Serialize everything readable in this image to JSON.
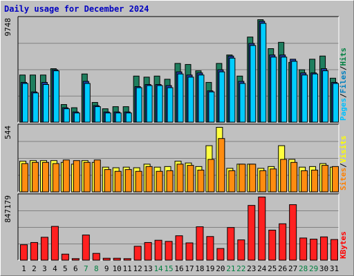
{
  "chart_data": [
    {
      "type": "bar",
      "title": "Daily usage for December 2024",
      "ymax_label": "9748",
      "ylim": [
        0,
        9748
      ],
      "categories": [
        "1",
        "2",
        "3",
        "4",
        "5",
        "6",
        "7",
        "8",
        "9",
        "10",
        "11",
        "12",
        "13",
        "14",
        "15",
        "16",
        "17",
        "18",
        "19",
        "20",
        "21",
        "22",
        "23",
        "24",
        "25",
        "26",
        "27",
        "28",
        "29",
        "30",
        "31"
      ],
      "weekend_days": [
        "7",
        "8",
        "14",
        "15",
        "21",
        "22",
        "28",
        "29"
      ],
      "legend": [
        {
          "label": "Hits",
          "color": "#008040"
        },
        {
          "label": "Files",
          "color": "#0080c0"
        },
        {
          "label": "Pages",
          "color": "#00c0ff"
        }
      ],
      "legend_separator": "/",
      "series": [
        {
          "name": "Hits",
          "color": "#1f7e5e",
          "values": [
            4500,
            4500,
            4500,
            5100,
            1700,
            1400,
            4600,
            1900,
            1300,
            1500,
            1500,
            4400,
            4300,
            4400,
            4100,
            5600,
            5500,
            4900,
            3800,
            5600,
            6400,
            4400,
            8100,
            9748,
            7000,
            7600,
            5700,
            5000,
            6000,
            6300,
            4200
          ]
        },
        {
          "name": "Files",
          "color": "#2040a0",
          "values": [
            3800,
            2900,
            3800,
            5000,
            1400,
            1000,
            3900,
            1600,
            1000,
            1000,
            1000,
            3400,
            3600,
            3600,
            3500,
            4800,
            4500,
            4700,
            3000,
            5000,
            6300,
            3900,
            7500,
            9600,
            6400,
            6400,
            6000,
            4700,
            4700,
            5100,
            3800
          ]
        },
        {
          "name": "Pages",
          "color": "#00ccff",
          "values": [
            3700,
            2800,
            3600,
            4900,
            1300,
            900,
            3700,
            1500,
            900,
            900,
            900,
            3300,
            3500,
            3500,
            3300,
            4600,
            4300,
            4500,
            2900,
            4800,
            6100,
            3700,
            7300,
            9400,
            6200,
            6200,
            5800,
            4500,
            4600,
            4900,
            3700
          ]
        }
      ]
    },
    {
      "type": "bar",
      "ymax_label": "544",
      "ylim": [
        0,
        544
      ],
      "categories": [
        "1",
        "2",
        "3",
        "4",
        "5",
        "6",
        "7",
        "8",
        "9",
        "10",
        "11",
        "12",
        "13",
        "14",
        "15",
        "16",
        "17",
        "18",
        "19",
        "20",
        "21",
        "22",
        "23",
        "24",
        "25",
        "26",
        "27",
        "28",
        "29",
        "30",
        "31"
      ],
      "legend": [
        {
          "label": "Visits",
          "color": "#ffff00"
        },
        {
          "label": "Sites",
          "color": "#ff8000"
        }
      ],
      "legend_separator": "/",
      "series": [
        {
          "name": "Visits",
          "color": "#ffff40",
          "values": [
            260,
            265,
            265,
            265,
            250,
            235,
            265,
            250,
            210,
            205,
            210,
            205,
            235,
            210,
            215,
            260,
            245,
            215,
            390,
            544,
            200,
            235,
            235,
            200,
            215,
            390,
            275,
            210,
            215,
            240,
            210
          ]
        },
        {
          "name": "Sites",
          "color": "#ff8c10",
          "values": [
            240,
            250,
            250,
            240,
            270,
            265,
            250,
            270,
            190,
            175,
            190,
            175,
            215,
            175,
            180,
            235,
            225,
            185,
            275,
            450,
            180,
            235,
            235,
            180,
            195,
            275,
            250,
            180,
            185,
            225,
            215
          ]
        }
      ]
    },
    {
      "type": "bar",
      "ymax_label": "847179",
      "ylim": [
        0,
        847179
      ],
      "categories": [
        "1",
        "2",
        "3",
        "4",
        "5",
        "6",
        "7",
        "8",
        "9",
        "10",
        "11",
        "12",
        "13",
        "14",
        "15",
        "16",
        "17",
        "18",
        "19",
        "20",
        "21",
        "22",
        "23",
        "24",
        "25",
        "26",
        "27",
        "28",
        "29",
        "30",
        "31"
      ],
      "legend": [
        {
          "label": "KBytes",
          "color": "#ff0000"
        }
      ],
      "series": [
        {
          "name": "KBytes",
          "color": "#ff2020",
          "values": [
            210000,
            240000,
            310000,
            455000,
            85000,
            25000,
            340000,
            95000,
            30000,
            30000,
            25000,
            190000,
            240000,
            270000,
            255000,
            330000,
            235000,
            450000,
            320000,
            160000,
            440000,
            275000,
            735000,
            847000,
            405000,
            490000,
            745000,
            300000,
            285000,
            315000,
            280000
          ]
        }
      ]
    }
  ]
}
